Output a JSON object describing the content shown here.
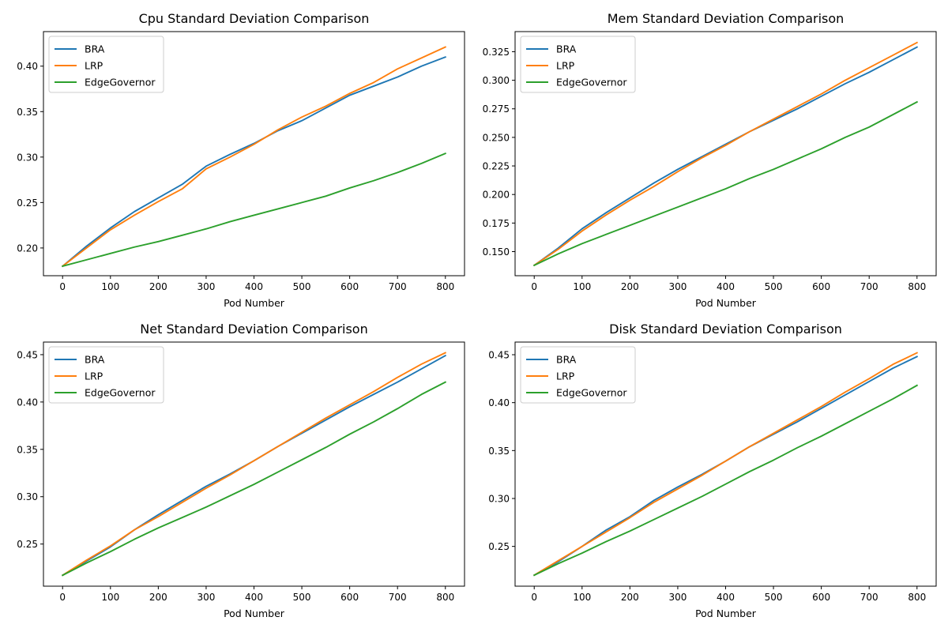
{
  "colors": {
    "BRA": "#1f77b4",
    "LRP": "#ff7f0e",
    "EdgeGovernor": "#2ca02c",
    "axis": "#000000",
    "background": "#ffffff"
  },
  "chart_data": [
    {
      "type": "line",
      "title": "Cpu Standard Deviation Comparison",
      "xlabel": "Pod Number",
      "ylabel": "",
      "xlim": [
        -40,
        840
      ],
      "ylim": [
        0.1695,
        0.438
      ],
      "xticks": [
        0,
        100,
        200,
        300,
        400,
        500,
        600,
        700,
        800
      ],
      "yticks": [
        0.2,
        0.25,
        0.3,
        0.35,
        0.4
      ],
      "ytick_labels": [
        "0.20",
        "0.25",
        "0.30",
        "0.35",
        "0.40"
      ],
      "grid": false,
      "legend": "top-left",
      "x": [
        0,
        50,
        100,
        150,
        200,
        250,
        300,
        350,
        400,
        450,
        500,
        550,
        600,
        650,
        700,
        750,
        800
      ],
      "series": [
        {
          "name": "BRA",
          "color": "#1f77b4",
          "values": [
            0.18,
            0.202,
            0.222,
            0.24,
            0.255,
            0.27,
            0.29,
            0.303,
            0.315,
            0.329,
            0.34,
            0.354,
            0.368,
            0.378,
            0.388,
            0.4,
            0.41
          ]
        },
        {
          "name": "LRP",
          "color": "#ff7f0e",
          "values": [
            0.18,
            0.2,
            0.22,
            0.236,
            0.251,
            0.265,
            0.287,
            0.3,
            0.314,
            0.33,
            0.344,
            0.356,
            0.37,
            0.382,
            0.397,
            0.409,
            0.421
          ]
        },
        {
          "name": "EdgeGovernor",
          "color": "#2ca02c",
          "values": [
            0.18,
            0.187,
            0.194,
            0.201,
            0.207,
            0.214,
            0.221,
            0.229,
            0.236,
            0.243,
            0.25,
            0.257,
            0.266,
            0.274,
            0.283,
            0.293,
            0.304
          ]
        }
      ]
    },
    {
      "type": "line",
      "title": "Mem Standard Deviation Comparison",
      "xlabel": "Pod Number",
      "ylabel": "",
      "xlim": [
        -40,
        840
      ],
      "ylim": [
        0.1289,
        0.3426
      ],
      "xticks": [
        0,
        100,
        200,
        300,
        400,
        500,
        600,
        700,
        800
      ],
      "yticks": [
        0.15,
        0.175,
        0.2,
        0.225,
        0.25,
        0.275,
        0.3,
        0.325
      ],
      "ytick_labels": [
        "0.150",
        "0.175",
        "0.200",
        "0.225",
        "0.250",
        "0.275",
        "0.300",
        "0.325"
      ],
      "grid": false,
      "legend": "top-left",
      "x": [
        0,
        50,
        100,
        150,
        200,
        250,
        300,
        350,
        400,
        450,
        500,
        550,
        600,
        650,
        700,
        750,
        800
      ],
      "series": [
        {
          "name": "BRA",
          "color": "#1f77b4",
          "values": [
            0.138,
            0.153,
            0.17,
            0.184,
            0.197,
            0.21,
            0.222,
            0.233,
            0.244,
            0.255,
            0.265,
            0.275,
            0.286,
            0.297,
            0.307,
            0.318,
            0.329
          ]
        },
        {
          "name": "LRP",
          "color": "#ff7f0e",
          "values": [
            0.138,
            0.152,
            0.168,
            0.182,
            0.195,
            0.207,
            0.22,
            0.232,
            0.243,
            0.255,
            0.266,
            0.277,
            0.288,
            0.3,
            0.311,
            0.322,
            0.333
          ]
        },
        {
          "name": "EdgeGovernor",
          "color": "#2ca02c",
          "values": [
            0.138,
            0.148,
            0.157,
            0.165,
            0.173,
            0.181,
            0.189,
            0.197,
            0.205,
            0.214,
            0.222,
            0.231,
            0.24,
            0.25,
            0.259,
            0.27,
            0.281
          ]
        }
      ]
    },
    {
      "type": "line",
      "title": "Net Standard Deviation Comparison",
      "xlabel": "Pod Number",
      "ylabel": "",
      "xlim": [
        -40,
        840
      ],
      "ylim": [
        0.2055,
        0.4633
      ],
      "xticks": [
        0,
        100,
        200,
        300,
        400,
        500,
        600,
        700,
        800
      ],
      "yticks": [
        0.25,
        0.3,
        0.35,
        0.4,
        0.45
      ],
      "ytick_labels": [
        "0.25",
        "0.30",
        "0.35",
        "0.40",
        "0.45"
      ],
      "grid": false,
      "legend": "top-left",
      "x": [
        0,
        50,
        100,
        150,
        200,
        250,
        300,
        350,
        400,
        450,
        500,
        550,
        600,
        650,
        700,
        750,
        800
      ],
      "series": [
        {
          "name": "BRA",
          "color": "#1f77b4",
          "values": [
            0.217,
            0.232,
            0.247,
            0.265,
            0.281,
            0.296,
            0.311,
            0.324,
            0.338,
            0.353,
            0.367,
            0.381,
            0.395,
            0.408,
            0.421,
            0.435,
            0.449
          ]
        },
        {
          "name": "LRP",
          "color": "#ff7f0e",
          "values": [
            0.217,
            0.233,
            0.248,
            0.265,
            0.279,
            0.294,
            0.309,
            0.323,
            0.338,
            0.353,
            0.368,
            0.383,
            0.397,
            0.411,
            0.426,
            0.44,
            0.452
          ]
        },
        {
          "name": "EdgeGovernor",
          "color": "#2ca02c",
          "values": [
            0.217,
            0.23,
            0.242,
            0.255,
            0.267,
            0.278,
            0.289,
            0.301,
            0.313,
            0.326,
            0.339,
            0.352,
            0.366,
            0.379,
            0.393,
            0.408,
            0.421
          ]
        }
      ]
    },
    {
      "type": "line",
      "title": "Disk Standard Deviation Comparison",
      "xlabel": "Pod Number",
      "ylabel": "",
      "xlim": [
        -40,
        840
      ],
      "ylim": [
        0.2085,
        0.4632
      ],
      "xticks": [
        0,
        100,
        200,
        300,
        400,
        500,
        600,
        700,
        800
      ],
      "yticks": [
        0.25,
        0.3,
        0.35,
        0.4,
        0.45
      ],
      "ytick_labels": [
        "0.25",
        "0.30",
        "0.35",
        "0.40",
        "0.45"
      ],
      "grid": false,
      "legend": "top-left",
      "x": [
        0,
        50,
        100,
        150,
        200,
        250,
        300,
        350,
        400,
        450,
        500,
        550,
        600,
        650,
        700,
        750,
        800
      ],
      "series": [
        {
          "name": "BRA",
          "color": "#1f77b4",
          "values": [
            0.22,
            0.234,
            0.25,
            0.267,
            0.281,
            0.298,
            0.312,
            0.325,
            0.339,
            0.354,
            0.367,
            0.38,
            0.394,
            0.408,
            0.422,
            0.436,
            0.448
          ]
        },
        {
          "name": "LRP",
          "color": "#ff7f0e",
          "values": [
            0.22,
            0.235,
            0.25,
            0.265,
            0.28,
            0.296,
            0.31,
            0.324,
            0.339,
            0.354,
            0.368,
            0.382,
            0.396,
            0.411,
            0.425,
            0.44,
            0.452
          ]
        },
        {
          "name": "EdgeGovernor",
          "color": "#2ca02c",
          "values": [
            0.22,
            0.232,
            0.243,
            0.255,
            0.266,
            0.278,
            0.29,
            0.302,
            0.315,
            0.328,
            0.34,
            0.353,
            0.365,
            0.378,
            0.391,
            0.404,
            0.418
          ]
        }
      ]
    }
  ]
}
